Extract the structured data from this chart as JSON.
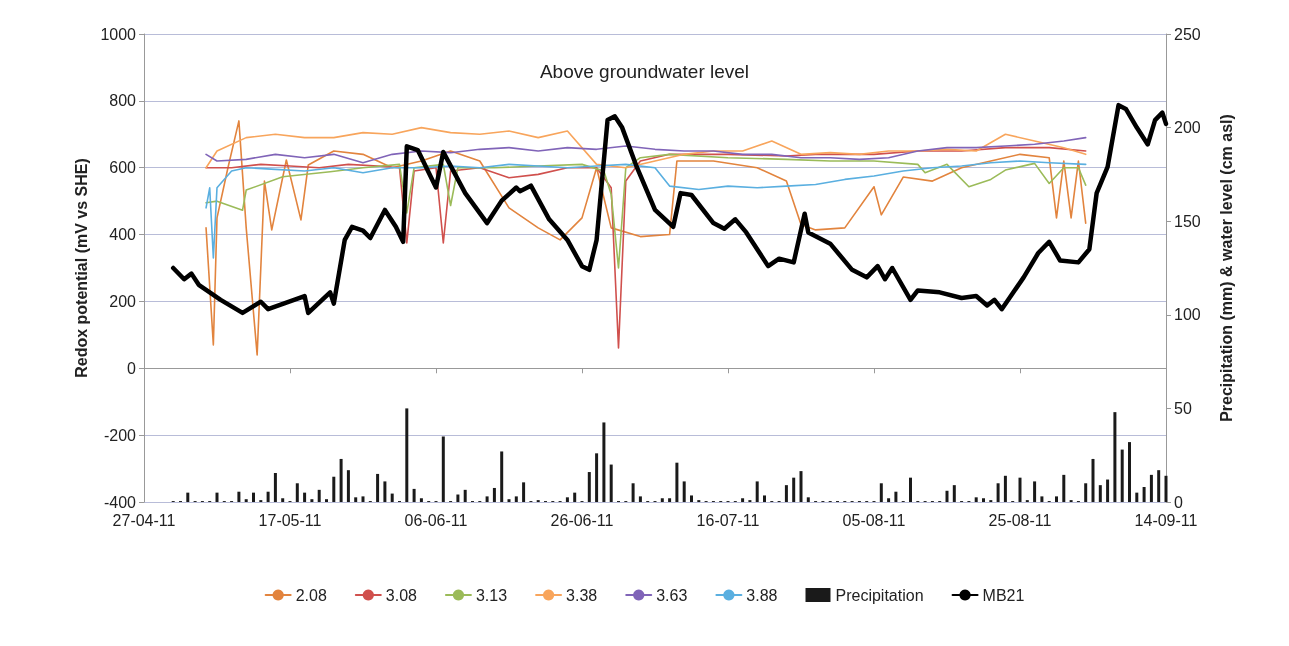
{
  "chart_data": {
    "type": "line",
    "annotations": [
      "Above groundwater level"
    ],
    "ylabel": "Redox potential (mV vs SHE)",
    "y2label": "Precipitation (mm) & water level (cm asl)",
    "xlim": [
      "2011-04-27",
      "2011-09-14"
    ],
    "xticks": [
      {
        "value": "2011-04-27",
        "label": "27-04-11"
      },
      {
        "value": "2011-05-17",
        "label": "17-05-11"
      },
      {
        "value": "2011-06-06",
        "label": "06-06-11"
      },
      {
        "value": "2011-06-26",
        "label": "26-06-11"
      },
      {
        "value": "2011-07-16",
        "label": "16-07-11"
      },
      {
        "value": "2011-08-05",
        "label": "05-08-11"
      },
      {
        "value": "2011-08-25",
        "label": "25-08-11"
      },
      {
        "value": "2011-09-14",
        "label": "14-09-11"
      }
    ],
    "ylim": [
      -400,
      1000
    ],
    "yticks": [
      -400,
      -200,
      0,
      200,
      400,
      600,
      800,
      1000
    ],
    "y2lim": [
      0,
      250
    ],
    "y2ticks": [
      0,
      50,
      100,
      150,
      200,
      250
    ],
    "grid": "y",
    "legend": "bottom",
    "marker": "none",
    "line_style": "solid",
    "x": [
      "2011-05-05T12:00",
      "2011-05-07",
      "2011-05-11",
      "2011-05-15",
      "2011-05-19",
      "2011-05-23",
      "2011-05-27",
      "2011-05-31",
      "2011-06-04",
      "2011-06-08",
      "2011-06-12",
      "2011-06-16",
      "2011-06-20",
      "2011-06-24",
      "2011-06-28",
      "2011-07-02",
      "2011-07-06",
      "2011-07-10",
      "2011-07-14",
      "2011-07-18",
      "2011-07-22",
      "2011-07-26",
      "2011-07-30",
      "2011-08-03",
      "2011-08-07",
      "2011-08-11",
      "2011-08-15",
      "2011-08-19",
      "2011-08-23",
      "2011-08-27",
      "2011-08-31",
      "2011-09-03"
    ],
    "series": [
      {
        "name": "2.08",
        "color": "#e2843e",
        "x": [
          "2011-05-05T12:00",
          "2011-05-06T12:00",
          "2011-05-07",
          "2011-05-08T12:00",
          "2011-05-10",
          "2011-05-11",
          "2011-05-12T12:00",
          "2011-05-13T12:00",
          "2011-05-14T12:00",
          "2011-05-16T12:00",
          "2011-05-18T12:00",
          "2011-05-19T12:00",
          "2011-05-23",
          "2011-05-27",
          "2011-05-31",
          "2011-06-04",
          "2011-06-08",
          "2011-06-12",
          "2011-06-16",
          "2011-06-20",
          "2011-06-23",
          "2011-06-26",
          "2011-06-28",
          "2011-06-30",
          "2011-07-04",
          "2011-07-08",
          "2011-07-09",
          "2011-07-14",
          "2011-07-20",
          "2011-07-24",
          "2011-07-26",
          "2011-07-28",
          "2011-08-01",
          "2011-08-05",
          "2011-08-06",
          "2011-08-09",
          "2011-08-13",
          "2011-08-17",
          "2011-08-21",
          "2011-08-25",
          "2011-08-29",
          "2011-08-30",
          "2011-08-31",
          "2011-09-01",
          "2011-09-02",
          "2011-09-03"
        ],
        "values": [
          420,
          70,
          450,
          600,
          740,
          420,
          40,
          560,
          414,
          623,
          444,
          608,
          650,
          640,
          600,
          620,
          650,
          620,
          480,
          420,
          384,
          450,
          600,
          420,
          394,
          400,
          620,
          620,
          600,
          560,
          430,
          414,
          420,
          543,
          459,
          572,
          560,
          600,
          620,
          640,
          630,
          450,
          620,
          450,
          620,
          434
        ]
      },
      {
        "name": "3.08",
        "color": "#d0504d",
        "x": [
          "2011-05-05T12:00",
          "2011-05-09",
          "2011-05-13",
          "2011-05-17",
          "2011-05-21",
          "2011-05-25",
          "2011-05-29",
          "2011-06-01",
          "2011-06-02",
          "2011-06-03",
          "2011-06-06",
          "2011-06-07",
          "2011-06-08",
          "2011-06-12",
          "2011-06-16",
          "2011-06-20",
          "2011-06-24",
          "2011-06-28",
          "2011-06-30",
          "2011-07-01",
          "2011-07-02",
          "2011-07-04",
          "2011-07-08",
          "2011-07-16",
          "2011-07-24",
          "2011-07-28",
          "2011-08-05",
          "2011-08-11",
          "2011-08-17",
          "2011-08-23",
          "2011-08-29",
          "2011-09-03"
        ],
        "values": [
          600,
          600,
          610,
          605,
          600,
          610,
          605,
          600,
          375,
          590,
          600,
          375,
          590,
          600,
          570,
          580,
          600,
          600,
          540,
          61,
          560,
          620,
          640,
          640,
          635,
          640,
          640,
          650,
          650,
          660,
          660,
          650
        ]
      },
      {
        "name": "3.13",
        "color": "#9bbb59",
        "x": [
          "2011-05-05T12:00",
          "2011-05-07",
          "2011-05-10T12:00",
          "2011-05-11",
          "2011-05-16",
          "2011-05-22T12:00",
          "2011-05-27",
          "2011-06-01",
          "2011-06-02",
          "2011-06-03",
          "2011-06-07",
          "2011-06-08",
          "2011-06-09",
          "2011-06-14",
          "2011-06-20",
          "2011-06-26",
          "2011-06-29",
          "2011-06-30",
          "2011-07-01",
          "2011-07-02",
          "2011-07-04",
          "2011-07-08",
          "2011-07-16",
          "2011-07-24",
          "2011-07-30",
          "2011-08-05",
          "2011-08-11",
          "2011-08-12",
          "2011-08-15",
          "2011-08-18",
          "2011-08-21",
          "2011-08-23",
          "2011-08-27",
          "2011-08-29",
          "2011-08-31",
          "2011-09-02",
          "2011-09-03"
        ],
        "values": [
          495,
          500,
          473,
          533,
          573,
          588,
          600,
          610,
          465,
          600,
          610,
          487,
          600,
          600,
          605,
          610,
          590,
          520,
          300,
          600,
          630,
          640,
          630,
          625,
          620,
          620,
          610,
          585,
          610,
          543,
          565,
          593,
          613,
          553,
          600,
          600,
          548
        ]
      },
      {
        "name": "3.38",
        "color": "#f8a55c",
        "values": [
          600,
          650,
          690,
          700,
          690,
          690,
          705,
          700,
          720,
          705,
          700,
          710,
          690,
          710,
          610,
          600,
          620,
          640,
          650,
          650,
          680,
          640,
          645,
          640,
          650,
          650,
          655,
          650,
          700,
          680,
          660,
          640
        ]
      },
      {
        "name": "3.63",
        "color": "#8064b8",
        "values": [
          640,
          620,
          625,
          640,
          630,
          640,
          615,
          640,
          650,
          645,
          655,
          660,
          650,
          660,
          655,
          665,
          655,
          650,
          650,
          640,
          640,
          630,
          630,
          625,
          630,
          650,
          660,
          660,
          665,
          670,
          680,
          690
        ]
      },
      {
        "name": "3.88",
        "color": "#5aafe0",
        "x": [
          "2011-05-05T12:00",
          "2011-05-06",
          "2011-05-06T12:00",
          "2011-05-07",
          "2011-05-09",
          "2011-05-11",
          "2011-05-15",
          "2011-05-19",
          "2011-05-23",
          "2011-05-27",
          "2011-05-31",
          "2011-06-04",
          "2011-06-08",
          "2011-06-12",
          "2011-06-16",
          "2011-06-20",
          "2011-06-24",
          "2011-06-28",
          "2011-07-02",
          "2011-07-06",
          "2011-07-08",
          "2011-07-12",
          "2011-07-16",
          "2011-07-20",
          "2011-07-24",
          "2011-07-28",
          "2011-08-01",
          "2011-08-05",
          "2011-08-09",
          "2011-08-13",
          "2011-08-17",
          "2011-08-21",
          "2011-08-25",
          "2011-08-29",
          "2011-09-03"
        ],
        "values": [
          480,
          540,
          330,
          540,
          590,
          600,
          595,
          590,
          600,
          585,
          600,
          600,
          605,
          600,
          610,
          605,
          600,
          605,
          610,
          600,
          545,
          535,
          545,
          540,
          545,
          550,
          565,
          575,
          590,
          600,
          605,
          615,
          620,
          615,
          610
        ]
      },
      {
        "name": "Precipitation",
        "type": "bar",
        "axis": "y2",
        "color": "#1a1a1a",
        "x": [
          "2011-05-01",
          "2011-05-02",
          "2011-05-03",
          "2011-05-04",
          "2011-05-05",
          "2011-05-06",
          "2011-05-07",
          "2011-05-08",
          "2011-05-09",
          "2011-05-10",
          "2011-05-11",
          "2011-05-12",
          "2011-05-13",
          "2011-05-14",
          "2011-05-15",
          "2011-05-16",
          "2011-05-17",
          "2011-05-18",
          "2011-05-19",
          "2011-05-20",
          "2011-05-21",
          "2011-05-22",
          "2011-05-23",
          "2011-05-24",
          "2011-05-25",
          "2011-05-26",
          "2011-05-27",
          "2011-05-28",
          "2011-05-29",
          "2011-05-30",
          "2011-05-31",
          "2011-06-01",
          "2011-06-02",
          "2011-06-03",
          "2011-06-04",
          "2011-06-05",
          "2011-06-06",
          "2011-06-07",
          "2011-06-08",
          "2011-06-09",
          "2011-06-10",
          "2011-06-11",
          "2011-06-12",
          "2011-06-13",
          "2011-06-14",
          "2011-06-15",
          "2011-06-16",
          "2011-06-17",
          "2011-06-18",
          "2011-06-19",
          "2011-06-20",
          "2011-06-21",
          "2011-06-22",
          "2011-06-23",
          "2011-06-24",
          "2011-06-25",
          "2011-06-26",
          "2011-06-27",
          "2011-06-28",
          "2011-06-29",
          "2011-06-30",
          "2011-07-01",
          "2011-07-02",
          "2011-07-03",
          "2011-07-04",
          "2011-07-05",
          "2011-07-06",
          "2011-07-07",
          "2011-07-08",
          "2011-07-09",
          "2011-07-10",
          "2011-07-11",
          "2011-07-12",
          "2011-07-13",
          "2011-07-14",
          "2011-07-15",
          "2011-07-16",
          "2011-07-17",
          "2011-07-18",
          "2011-07-19",
          "2011-07-20",
          "2011-07-21",
          "2011-07-22",
          "2011-07-23",
          "2011-07-24",
          "2011-07-25",
          "2011-07-26",
          "2011-07-27",
          "2011-07-28",
          "2011-07-29",
          "2011-07-30",
          "2011-07-31",
          "2011-08-01",
          "2011-08-02",
          "2011-08-03",
          "2011-08-04",
          "2011-08-05",
          "2011-08-06",
          "2011-08-07",
          "2011-08-08",
          "2011-08-09",
          "2011-08-10",
          "2011-08-11",
          "2011-08-12",
          "2011-08-13",
          "2011-08-14",
          "2011-08-15",
          "2011-08-16",
          "2011-08-17",
          "2011-08-18",
          "2011-08-19",
          "2011-08-20",
          "2011-08-21",
          "2011-08-22",
          "2011-08-23",
          "2011-08-24",
          "2011-08-25",
          "2011-08-26",
          "2011-08-27",
          "2011-08-28",
          "2011-08-29",
          "2011-08-30",
          "2011-08-31",
          "2011-09-01",
          "2011-09-02",
          "2011-09-03",
          "2011-09-04",
          "2011-09-05",
          "2011-09-06",
          "2011-09-07",
          "2011-09-08",
          "2011-09-09",
          "2011-09-10",
          "2011-09-11",
          "2011-09-12",
          "2011-09-13",
          "2011-09-14"
        ],
        "values": [
          0.5,
          0.5,
          5,
          0.5,
          0.5,
          0.5,
          5,
          0.5,
          0.5,
          5.5,
          1.5,
          5,
          1,
          5.5,
          15.5,
          2,
          0.5,
          10,
          5,
          1.5,
          6.5,
          1.5,
          13.5,
          23,
          17,
          2.5,
          3,
          0.5,
          15,
          11,
          4.5,
          0.5,
          50,
          7,
          2,
          0.5,
          0.5,
          35,
          0.5,
          4,
          6.5,
          0.5,
          0.5,
          3,
          7.5,
          27,
          1.5,
          3,
          10.5,
          0.5,
          1,
          0.5,
          0.5,
          0.5,
          2.5,
          5,
          0.5,
          16,
          26,
          42.5,
          20,
          0.5,
          0.5,
          10,
          3,
          0.5,
          0.5,
          2,
          2,
          21,
          11,
          3.5,
          1,
          0.5,
          0.5,
          0.5,
          0.5,
          0.5,
          2,
          1,
          11,
          3.5,
          0.5,
          0.5,
          9,
          13,
          16.5,
          2.5,
          0.5,
          0.5,
          0.5,
          0.5,
          0.5,
          0.5,
          0.5,
          0.5,
          0.5,
          10,
          2,
          5.5,
          0.5,
          13,
          0.5,
          0.5,
          0.5,
          0.5,
          6,
          9,
          0.5,
          0.5,
          2.5,
          2,
          1,
          10,
          14,
          0.5,
          13,
          1,
          11,
          3,
          0.5,
          3,
          14.5,
          1,
          0.5,
          10,
          23,
          9,
          12,
          48,
          28,
          32,
          5,
          8,
          14.5,
          17,
          14
        ]
      },
      {
        "name": "MB21",
        "axis": "y2",
        "color": "#000000",
        "x": [
          "2011-05-01",
          "2011-05-02T12:00",
          "2011-05-03T12:00",
          "2011-05-04T12:00",
          "2011-05-07T12:00",
          "2011-05-10T12:00",
          "2011-05-13",
          "2011-05-14",
          "2011-05-19",
          "2011-05-19T12:00",
          "2011-05-22T12:00",
          "2011-05-23",
          "2011-05-24T12:00",
          "2011-05-25T12:00",
          "2011-05-27",
          "2011-05-28",
          "2011-05-30",
          "2011-05-31T12:00",
          "2011-06-01T12:00",
          "2011-06-02",
          "2011-06-03T12:00",
          "2011-06-06",
          "2011-06-07",
          "2011-06-10",
          "2011-06-13",
          "2011-06-15",
          "2011-06-17",
          "2011-06-17T12:00",
          "2011-06-19",
          "2011-06-21T12:00",
          "2011-06-24",
          "2011-06-26",
          "2011-06-27",
          "2011-06-28",
          "2011-06-29T12:00",
          "2011-06-30T12:00",
          "2011-07-01T12:00",
          "2011-07-03T12:00",
          "2011-07-06",
          "2011-07-08T12:00",
          "2011-07-09T12:00",
          "2011-07-11",
          "2011-07-14",
          "2011-07-15T12:00",
          "2011-07-17",
          "2011-07-18T12:00",
          "2011-07-21T12:00",
          "2011-07-23",
          "2011-07-25",
          "2011-07-26T12:00",
          "2011-07-27",
          "2011-07-30",
          "2011-08-02",
          "2011-08-04",
          "2011-08-05T12:00",
          "2011-08-06T12:00",
          "2011-08-07T12:00",
          "2011-08-10",
          "2011-08-11",
          "2011-08-14",
          "2011-08-17",
          "2011-08-19",
          "2011-08-20T12:00",
          "2011-08-21T12:00",
          "2011-08-22T12:00",
          "2011-08-25T12:00",
          "2011-08-27T12:00",
          "2011-08-29",
          "2011-08-30T12:00",
          "2011-09-02",
          "2011-09-03T12:00",
          "2011-09-04T12:00",
          "2011-09-06",
          "2011-09-07T12:00",
          "2011-09-08T12:00",
          "2011-09-10",
          "2011-09-11T12:00",
          "2011-09-12T12:00",
          "2011-09-13T12:00",
          "2011-09-14"
        ],
        "values": [
          125,
          119,
          122,
          116,
          108,
          101,
          107,
          103,
          110,
          101,
          112,
          106,
          140,
          147,
          145,
          141,
          156,
          147,
          139,
          190,
          188,
          168,
          187,
          165,
          149,
          161,
          168,
          166,
          169,
          151,
          140,
          126,
          124,
          140,
          204,
          206,
          200,
          179,
          156,
          147,
          165,
          164,
          149,
          146,
          151,
          144,
          126,
          130,
          128,
          154,
          144,
          138,
          124,
          120,
          126,
          119,
          125,
          108,
          113,
          112,
          109,
          110,
          105,
          108,
          103,
          120,
          133,
          139,
          129,
          128,
          135,
          165,
          179,
          212,
          210,
          200,
          191,
          204,
          208,
          202
        ]
      }
    ]
  }
}
